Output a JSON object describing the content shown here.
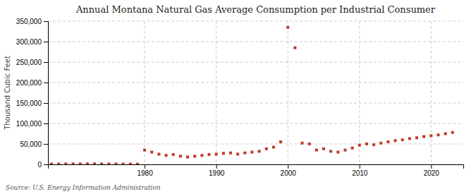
{
  "chart_data": {
    "type": "scatter",
    "title": "Annual Montana Natural Gas Average Consumption per Industrial Consumer",
    "ylabel": "Thousand Cubic Feet",
    "annotations": [
      "Source: U.S. Energy Information Administration"
    ],
    "x": [
      1967,
      1968,
      1969,
      1970,
      1971,
      1972,
      1973,
      1974,
      1975,
      1976,
      1977,
      1978,
      1979,
      1980,
      1981,
      1982,
      1983,
      1984,
      1985,
      1986,
      1987,
      1988,
      1989,
      1990,
      1991,
      1992,
      1993,
      1994,
      1995,
      1996,
      1997,
      1998,
      1999,
      2000,
      2001,
      2002,
      2003,
      2004,
      2005,
      2006,
      2007,
      2008,
      2009,
      2010,
      2011,
      2012,
      2013,
      2014,
      2015,
      2016,
      2017,
      2018,
      2019,
      2020,
      2021,
      2022,
      2023
    ],
    "values": [
      800,
      900,
      1000,
      1100,
      1100,
      1200,
      1200,
      1100,
      1000,
      900,
      800,
      700,
      600,
      35000,
      30000,
      25000,
      22000,
      24000,
      20000,
      18000,
      20000,
      22000,
      24000,
      25000,
      27000,
      28000,
      25000,
      28000,
      30000,
      32000,
      38000,
      42000,
      55000,
      335000,
      285000,
      52000,
      50000,
      35000,
      38000,
      32000,
      30000,
      35000,
      40000,
      47000,
      50000,
      48000,
      52000,
      55000,
      58000,
      60000,
      63000,
      65000,
      68000,
      70000,
      72000,
      75000,
      78000
    ],
    "color": "#c0392b",
    "marker": "square",
    "grid": true,
    "xlim": [
      1966.5,
      2024.5
    ],
    "xticks": [
      1980,
      1990,
      2000,
      2010,
      2020
    ],
    "ylim": [
      0,
      350000
    ],
    "yticks": [
      0,
      {
        "value": 50000,
        "label": "50,000"
      },
      {
        "value": 100000,
        "label": "100,000"
      },
      {
        "value": 150000,
        "label": "150,000"
      },
      {
        "value": 200000,
        "label": "200,000"
      },
      {
        "value": 250000,
        "label": "250,000"
      },
      {
        "value": 300000,
        "label": "300,000"
      },
      {
        "value": 350000,
        "label": "350,000"
      }
    ]
  }
}
